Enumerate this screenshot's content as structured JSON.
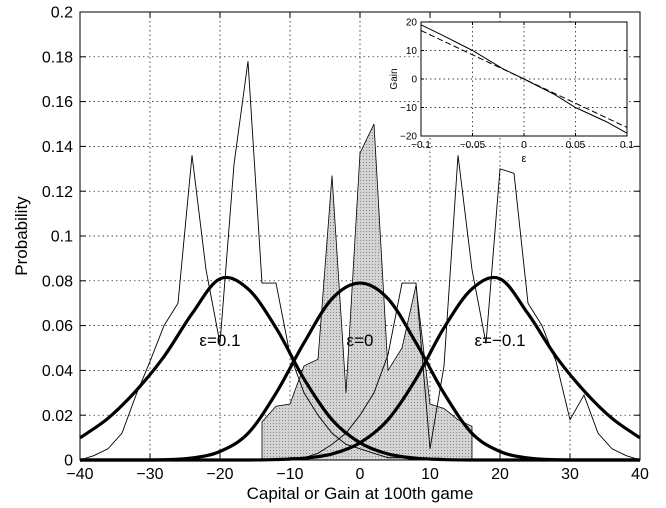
{
  "chart_data": [
    {
      "type": "line",
      "xlabel": "Capital or Gain at 100th game",
      "ylabel": "Probability",
      "xlim": [
        -40,
        40
      ],
      "ylim": [
        0,
        0.2
      ],
      "xticks": [
        "−40",
        "−30",
        "−20",
        "−10",
        "0",
        "10",
        "20",
        "30",
        "40"
      ],
      "yticks": [
        "0",
        "0.02",
        "0.04",
        "0.06",
        "0.08",
        "0.1",
        "0.12",
        "0.14",
        "0.16",
        "0.18",
        "0.2"
      ],
      "grid": true,
      "annotations": [
        {
          "text": "ε=0.1",
          "x": -20,
          "y": 0.051
        },
        {
          "text": "ε=0",
          "x": 0,
          "y": 0.051
        },
        {
          "text": "ε=−0.1",
          "x": 20,
          "y": 0.051
        }
      ],
      "series": [
        {
          "style": "thick-curve",
          "x": [
            -40,
            -36,
            -32,
            -28,
            -24,
            -20,
            -16,
            -12,
            -8,
            -4,
            0,
            4,
            8,
            12,
            16,
            20,
            24,
            28,
            32,
            36,
            40
          ],
          "values": [
            0.0099,
            0.0186,
            0.0309,
            0.0462,
            0.0653,
            0.0809,
            0.0764,
            0.059,
            0.0362,
            0.018,
            0.0077,
            0.0027,
            0.0008,
            0.0002,
            0,
            0,
            0,
            0,
            0,
            0,
            0
          ]
        },
        {
          "style": "thick-curve",
          "x": [
            -40,
            -36,
            -32,
            -28,
            -24,
            -20,
            -16,
            -12,
            -8,
            -4,
            0,
            4,
            8,
            12,
            16,
            20,
            24,
            28,
            32,
            36,
            40
          ],
          "values": [
            0,
            0,
            0,
            0.0001,
            0.0009,
            0.0038,
            0.0119,
            0.0298,
            0.0523,
            0.072,
            0.079,
            0.072,
            0.0523,
            0.0298,
            0.0119,
            0.0038,
            0.0009,
            0.0001,
            0,
            0,
            0
          ]
        },
        {
          "style": "thick-curve",
          "x": [
            -40,
            -36,
            -32,
            -28,
            -24,
            -20,
            -16,
            -12,
            -8,
            -4,
            0,
            4,
            8,
            12,
            16,
            20,
            24,
            28,
            32,
            36,
            40
          ],
          "values": [
            0,
            0,
            0,
            0,
            0,
            0,
            0,
            0.0002,
            0.0008,
            0.0027,
            0.0077,
            0.018,
            0.0362,
            0.059,
            0.0764,
            0.0809,
            0.0653,
            0.0462,
            0.0309,
            0.0186,
            0.0099
          ]
        },
        {
          "style": "thin-line",
          "x": [
            -40,
            -38,
            -36,
            -34,
            -32,
            -30,
            -28,
            -26,
            -24,
            -22,
            -20,
            -18,
            -16,
            -14,
            -12,
            -10,
            -8,
            -6,
            -4,
            -2,
            0,
            2,
            4,
            6,
            8,
            10,
            12,
            14,
            16
          ],
          "values": [
            0,
            0.002,
            0.005,
            0.012,
            0.029,
            0.044,
            0.06,
            0.07,
            0.136,
            0.085,
            0.052,
            0.132,
            0.178,
            0.079,
            0.079,
            0.047,
            0.03,
            0.02,
            0.012,
            0.007,
            0.005,
            0.003,
            0.001,
            0.001,
            0,
            0,
            0,
            0,
            0
          ]
        },
        {
          "style": "thin-line",
          "x": [
            -16,
            -14,
            -12,
            -10,
            -8,
            -6,
            -4,
            -2,
            0,
            2,
            4,
            6,
            8,
            10,
            12,
            14,
            16,
            18,
            20,
            22,
            24,
            26,
            28,
            30,
            32,
            34,
            36,
            38,
            40
          ],
          "values": [
            0,
            0,
            0,
            0.001,
            0.001,
            0.003,
            0.007,
            0.012,
            0.02,
            0.03,
            0.047,
            0.079,
            0.079,
            0.005,
            0.042,
            0.136,
            0.085,
            0.052,
            0.13,
            0.128,
            0.07,
            0.06,
            0.044,
            0.018,
            0.029,
            0.012,
            0.005,
            0.002,
            0
          ]
        },
        {
          "style": "shaded",
          "x": [
            -14,
            -12,
            -10,
            -8,
            -6,
            -4,
            -2,
            0,
            2,
            4,
            6,
            8,
            10,
            12,
            14,
            16
          ],
          "values": [
            0.017,
            0.024,
            0.025,
            0.042,
            0.045,
            0.127,
            0.03,
            0.137,
            0.15,
            0.04,
            0.05,
            0.078,
            0.025,
            0.023,
            0.018,
            0.015
          ]
        }
      ]
    },
    {
      "type": "line",
      "xlabel": "ε",
      "ylabel": "Gain",
      "xlim": [
        -0.1,
        0.1
      ],
      "ylim": [
        -20,
        20
      ],
      "xticks": [
        "−0.1",
        "−0.05",
        "0",
        "0.05",
        "0.1"
      ],
      "yticks": [
        "20",
        "10",
        "0",
        "−10",
        "−20"
      ],
      "grid": true,
      "series": [
        {
          "style": "solid",
          "x": [
            -0.1,
            -0.08,
            -0.05,
            -0.02,
            0,
            0.03,
            0.05,
            0.08,
            0.1
          ],
          "values": [
            19,
            15.5,
            10,
            3.5,
            0,
            -5.5,
            -10,
            -15,
            -19
          ]
        },
        {
          "style": "dashed",
          "x": [
            -0.1,
            0.1
          ],
          "values": [
            17,
            -17
          ]
        }
      ]
    }
  ]
}
